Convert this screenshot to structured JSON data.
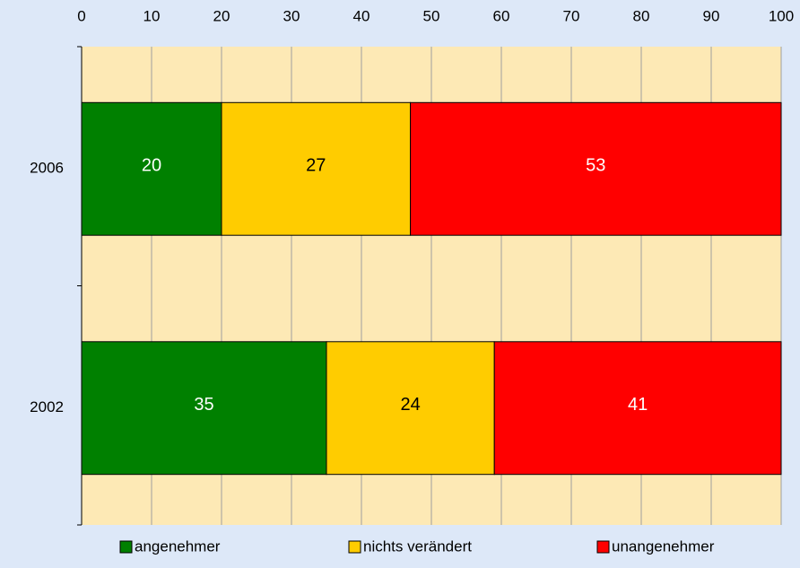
{
  "chart_data": {
    "type": "stacked-bar-horizontal",
    "categories": [
      "2006",
      "2002"
    ],
    "series": [
      {
        "name": "angenehmer",
        "color": "#008000",
        "label_color": "#ffffff",
        "values": [
          20,
          35
        ]
      },
      {
        "name": "nichts verändert",
        "color": "#ffcc00",
        "label_color": "#000000",
        "values": [
          27,
          24
        ]
      },
      {
        "name": "unangenehmer",
        "color": "#ff0000",
        "label_color": "#ffffff",
        "values": [
          53,
          41
        ]
      }
    ],
    "xlim": [
      0,
      100
    ],
    "xticks": [
      0,
      10,
      20,
      30,
      40,
      50,
      60,
      70,
      80,
      90,
      100
    ],
    "grid": true,
    "legend": "bottom"
  }
}
